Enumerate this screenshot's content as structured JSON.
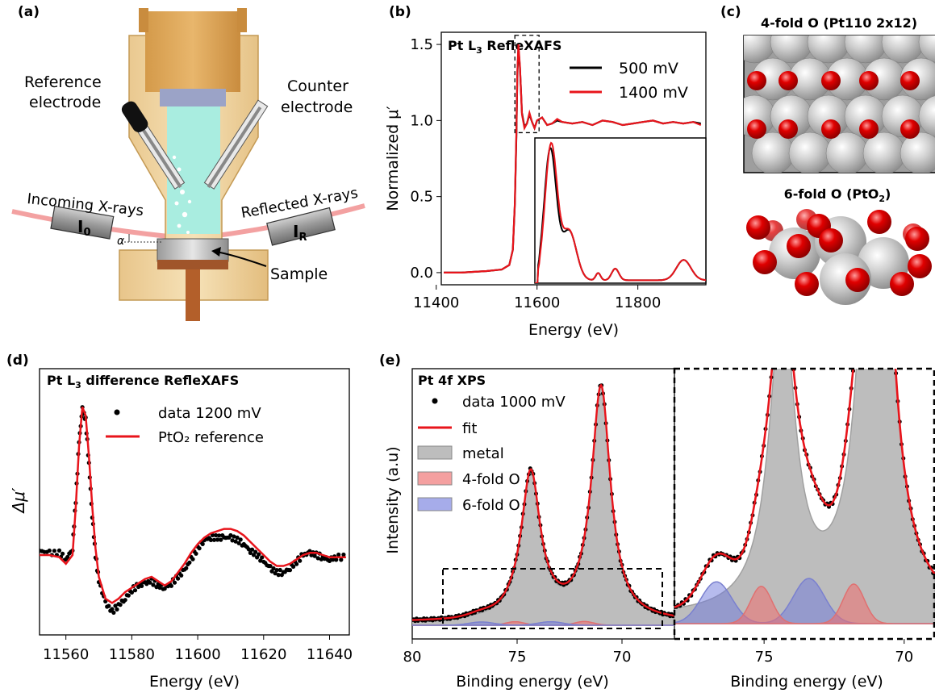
{
  "panel_letters": {
    "a": "(a)",
    "b": "(b)",
    "c": "(c)",
    "d": "(d)",
    "e": "(e)"
  },
  "panel_a": {
    "reference_electrode_line1": "Reference",
    "reference_electrode_line2": "electrode",
    "counter_electrode_line1": "Counter",
    "counter_electrode_line2": "electrode",
    "incoming_xrays": "Incoming X-rays",
    "reflected_xrays": "Reflected X-rays",
    "i0_label": "I",
    "i0_sub": "0",
    "ir_label": "I",
    "ir_sub": "R",
    "alpha": "α",
    "sample": "Sample"
  },
  "panel_c": {
    "top_label": "4-fold O (Pt110 2x12)",
    "bottom_label_pre": "6-fold O (PtO",
    "bottom_label_sub": "2",
    "bottom_label_post": ")"
  },
  "chart_data": [
    {
      "panel": "b",
      "type": "line",
      "title_pre": "Pt L",
      "title_sub": "3",
      "title_post": " RefleXAFS",
      "xlabel": "Energy (eV)",
      "ylabel": "Normalized μ′",
      "xlim": [
        11410,
        11935
      ],
      "ylim": [
        -0.08,
        1.58
      ],
      "xticks": [
        "11400",
        "11600",
        "11800"
      ],
      "yticks": [
        "0.0",
        "0.5",
        "1.0",
        "1.5"
      ],
      "series": [
        {
          "name": "500 mV",
          "color": "#000000",
          "x": [
            11415,
            11450,
            11500,
            11530,
            11545,
            11552,
            11556,
            11559,
            11561,
            11563,
            11566,
            11570,
            11575,
            11580,
            11585,
            11590,
            11595,
            11600,
            11610,
            11620,
            11630,
            11640,
            11650,
            11670,
            11690,
            11710,
            11730,
            11750,
            11770,
            11790,
            11810,
            11830,
            11850,
            11870,
            11890,
            11910,
            11925
          ],
          "y": [
            0.0,
            0.0,
            0.01,
            0.02,
            0.05,
            0.15,
            0.45,
            0.9,
            1.3,
            1.48,
            1.35,
            1.05,
            0.96,
            0.98,
            1.04,
            0.99,
            0.95,
            1.0,
            1.02,
            0.97,
            0.98,
            1.0,
            0.99,
            0.98,
            0.99,
            0.97,
            1.0,
            0.99,
            0.97,
            0.98,
            0.99,
            1.0,
            0.98,
            0.99,
            0.98,
            0.99,
            0.98
          ]
        },
        {
          "name": "1400 mV",
          "color": "#e8141b",
          "x": [
            11415,
            11450,
            11500,
            11530,
            11545,
            11552,
            11556,
            11559,
            11561,
            11563,
            11566,
            11570,
            11575,
            11580,
            11585,
            11590,
            11595,
            11600,
            11610,
            11620,
            11630,
            11640,
            11650,
            11670,
            11690,
            11710,
            11730,
            11750,
            11770,
            11790,
            11810,
            11830,
            11850,
            11870,
            11890,
            11910,
            11925
          ],
          "y": [
            0.0,
            0.0,
            0.01,
            0.02,
            0.05,
            0.15,
            0.46,
            0.92,
            1.32,
            1.5,
            1.36,
            1.04,
            0.95,
            0.98,
            1.05,
            0.99,
            0.95,
            1.0,
            1.02,
            0.97,
            0.98,
            1.01,
            0.99,
            0.98,
            0.99,
            0.97,
            1.0,
            0.99,
            0.97,
            0.98,
            0.99,
            1.0,
            0.98,
            0.99,
            0.98,
            0.99,
            0.97
          ]
        }
      ],
      "legend_position": "top-right"
    },
    {
      "panel": "d",
      "type": "line",
      "title_pre": "Pt L",
      "title_sub": "3",
      "title_post": " difference RefleXAFS",
      "xlabel": "Energy (eV)",
      "ylabel": "Δμ′",
      "xlim": [
        11552,
        11646
      ],
      "ylim": [
        0,
        1
      ],
      "xticks": [
        "11560",
        "11580",
        "11600",
        "11620",
        "11640"
      ],
      "series": [
        {
          "name": "data 1200 mV",
          "color": "#000000",
          "style": "dots",
          "x": [
            11552,
            11555,
            11558,
            11560,
            11562,
            11563,
            11564,
            11565,
            11566,
            11567,
            11568,
            11569,
            11570,
            11572,
            11574,
            11576,
            11578,
            11580,
            11582,
            11584,
            11586,
            11588,
            11590,
            11592,
            11594,
            11596,
            11598,
            11600,
            11602,
            11604,
            11606,
            11608,
            11610,
            11612,
            11614,
            11616,
            11618,
            11620,
            11622,
            11624,
            11626,
            11628,
            11630,
            11632,
            11634,
            11636,
            11638,
            11640,
            11642,
            11645
          ],
          "y": [
            0.32,
            0.31,
            0.31,
            0.28,
            0.33,
            0.55,
            0.82,
            0.97,
            0.92,
            0.72,
            0.48,
            0.3,
            0.18,
            0.08,
            0.04,
            0.07,
            0.1,
            0.14,
            0.16,
            0.17,
            0.18,
            0.16,
            0.15,
            0.17,
            0.2,
            0.23,
            0.28,
            0.33,
            0.37,
            0.38,
            0.38,
            0.38,
            0.38,
            0.37,
            0.35,
            0.32,
            0.3,
            0.27,
            0.24,
            0.22,
            0.22,
            0.24,
            0.27,
            0.3,
            0.31,
            0.3,
            0.29,
            0.28,
            0.29,
            0.29
          ]
        },
        {
          "name": "PtO₂ reference",
          "color": "#e8141b",
          "style": "line",
          "x": [
            11552,
            11555,
            11558,
            11560,
            11562,
            11563,
            11564,
            11565,
            11566,
            11567,
            11568,
            11569,
            11570,
            11572,
            11574,
            11576,
            11578,
            11580,
            11582,
            11584,
            11586,
            11588,
            11590,
            11592,
            11594,
            11596,
            11598,
            11600,
            11602,
            11604,
            11606,
            11608,
            11610,
            11612,
            11614,
            11616,
            11618,
            11620,
            11622,
            11624,
            11626,
            11628,
            11630,
            11632,
            11634,
            11636,
            11638,
            11640,
            11642,
            11645
          ],
          "y": [
            0.3,
            0.3,
            0.29,
            0.26,
            0.3,
            0.52,
            0.8,
            0.98,
            0.94,
            0.75,
            0.52,
            0.33,
            0.2,
            0.1,
            0.08,
            0.1,
            0.13,
            0.15,
            0.17,
            0.19,
            0.2,
            0.18,
            0.16,
            0.18,
            0.22,
            0.26,
            0.31,
            0.35,
            0.38,
            0.4,
            0.41,
            0.42,
            0.42,
            0.41,
            0.39,
            0.36,
            0.33,
            0.3,
            0.27,
            0.25,
            0.25,
            0.26,
            0.28,
            0.3,
            0.31,
            0.31,
            0.3,
            0.29,
            0.29,
            0.29
          ]
        }
      ],
      "legend_position": "top-left"
    },
    {
      "panel": "e",
      "type": "line",
      "title": "Pt 4f XPS",
      "xlabel": "Binding energy (eV)",
      "ylabel": "Intensity (a.u)",
      "xlim": [
        80,
        67.5
      ],
      "xticks": [
        "80",
        "75",
        "70"
      ],
      "legend": [
        {
          "name": "data 1000 mV",
          "color": "#000000",
          "style": "dots"
        },
        {
          "name": "fit",
          "color": "#e8141b",
          "style": "line"
        },
        {
          "name": "metal",
          "color": "#bdbdbd",
          "style": "patch"
        },
        {
          "name": "4-fold O",
          "color": "#f4a0a0",
          "style": "patch"
        },
        {
          "name": "6-fold O",
          "color": "#a6acea",
          "style": "patch"
        }
      ],
      "peaks": {
        "metal": [
          {
            "center": 74.35,
            "height": 0.58
          },
          {
            "center": 71.0,
            "height": 0.93
          }
        ],
        "four_fold_O": [
          {
            "center": 75.1,
            "height": 0.014
          },
          {
            "center": 71.8,
            "height": 0.015
          }
        ],
        "six_fold_O": [
          {
            "center": 76.7,
            "height": 0.013
          },
          {
            "center": 73.4,
            "height": 0.014
          }
        ]
      }
    },
    {
      "panel": "e-inset",
      "type": "line",
      "xlabel": "Binding energy (eV)",
      "xlim": [
        78.2,
        68.9
      ],
      "xticks": [
        "75",
        "70"
      ],
      "peaks": {
        "metal_dip_center": 72.9,
        "four_fold_O": [
          {
            "center": 75.1,
            "height": 0.4
          },
          {
            "center": 71.8,
            "height": 0.42
          }
        ],
        "six_fold_O": [
          {
            "center": 76.7,
            "height": 0.45
          },
          {
            "center": 73.4,
            "height": 0.48
          }
        ]
      }
    }
  ]
}
